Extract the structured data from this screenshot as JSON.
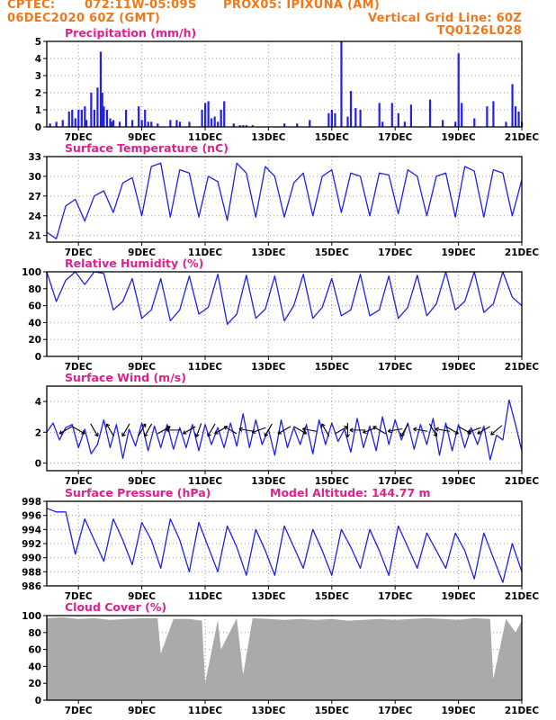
{
  "header": {
    "source": "CPTEC:",
    "coords": "072:11W-05:09S",
    "point": "PROX05: IPIXUNA (AM)",
    "run": "06DEC2020 60Z (GMT)",
    "vgrid": "Vertical Grid Line: 60Z",
    "model": "TQ0126L028"
  },
  "colors": {
    "header": "#f07818",
    "title": "#e0208c",
    "series": "#2020e8",
    "cloud": "#aaaaaa",
    "arrow": "#000000"
  },
  "chart_data": [
    {
      "type": "bar",
      "title": "Precipitation (mm/h)",
      "x_range": [
        0,
        15
      ],
      "ylim": [
        0,
        5
      ],
      "y_ticks": [
        0,
        1,
        2,
        3,
        4,
        5
      ],
      "x_ticks": [
        "7DEC",
        "9DEC",
        "11DEC",
        "13DEC",
        "15DEC",
        "17DEC",
        "19DEC",
        "21DEC"
      ],
      "grid": "dotted",
      "x": [
        0.1,
        0.3,
        0.5,
        0.7,
        0.8,
        0.9,
        1.0,
        1.1,
        1.2,
        1.25,
        1.4,
        1.5,
        1.6,
        1.7,
        1.75,
        1.8,
        1.9,
        2.0,
        2.05,
        2.1,
        2.3,
        2.5,
        2.7,
        2.9,
        3.0,
        3.1,
        3.2,
        3.3,
        3.5,
        3.9,
        4.1,
        4.2,
        4.5,
        4.9,
        5.0,
        5.1,
        5.2,
        5.3,
        5.4,
        5.5,
        5.6,
        5.9,
        6.1,
        6.2,
        6.3,
        6.5,
        7.5,
        7.9,
        8.3,
        8.9,
        9.0,
        9.1,
        9.3,
        9.5,
        9.6,
        9.75,
        9.9,
        10.5,
        10.6,
        10.9,
        11.1,
        11.3,
        11.5,
        12.1,
        12.5,
        12.9,
        13.0,
        13.1,
        13.5,
        13.9,
        14.1,
        14.5,
        14.7,
        14.8,
        14.9,
        15.0
      ],
      "values": [
        0.2,
        0.3,
        0.4,
        0.9,
        1.0,
        0.5,
        1.0,
        1.0,
        1.2,
        0.4,
        2.0,
        1.0,
        2.3,
        4.4,
        2.0,
        1.2,
        1.0,
        0.5,
        0.3,
        0.4,
        0.3,
        1.0,
        0.4,
        1.2,
        0.4,
        1.0,
        0.3,
        0.3,
        0.2,
        0.4,
        0.4,
        0.3,
        0.3,
        1.0,
        1.4,
        1.5,
        0.5,
        0.6,
        0.3,
        1.0,
        1.5,
        0.2,
        0.1,
        0.1,
        0.1,
        0.1,
        0.2,
        0.2,
        0.4,
        0.8,
        1.0,
        0.8,
        5.0,
        0.6,
        2.1,
        1.1,
        1.0,
        1.4,
        0.3,
        1.4,
        0.8,
        0.3,
        1.3,
        1.6,
        0.4,
        0.3,
        4.3,
        1.4,
        0.5,
        1.2,
        1.5,
        0.3,
        2.5,
        1.2,
        0.9,
        0.3
      ],
      "xlabel": "",
      "ylabel": ""
    },
    {
      "type": "line",
      "title": "Surface Temperature (nC)",
      "x_range": [
        0,
        15
      ],
      "ylim": [
        20,
        33
      ],
      "y_ticks": [
        21,
        24,
        27,
        30,
        33
      ],
      "x_ticks": [
        "7DEC",
        "9DEC",
        "11DEC",
        "13DEC",
        "15DEC",
        "17DEC",
        "19DEC",
        "21DEC"
      ],
      "grid": "dotted",
      "x": [
        0,
        0.3,
        0.6,
        0.9,
        1.2,
        1.5,
        1.8,
        2.1,
        2.4,
        2.7,
        3.0,
        3.3,
        3.6,
        3.9,
        4.2,
        4.5,
        4.8,
        5.1,
        5.4,
        5.7,
        6.0,
        6.3,
        6.6,
        6.9,
        7.2,
        7.5,
        7.8,
        8.1,
        8.4,
        8.7,
        9.0,
        9.3,
        9.6,
        9.9,
        10.2,
        10.5,
        10.8,
        11.1,
        11.4,
        11.7,
        12.0,
        12.3,
        12.6,
        12.9,
        13.2,
        13.5,
        13.8,
        14.1,
        14.4,
        14.7,
        15.0
      ],
      "values": [
        21.5,
        20.5,
        25.5,
        26.5,
        23.2,
        27.0,
        27.8,
        24.5,
        29.0,
        29.8,
        24.0,
        31.5,
        32.0,
        23.8,
        31.0,
        30.5,
        23.8,
        30.0,
        29.2,
        23.3,
        32.0,
        30.5,
        23.8,
        31.5,
        30.0,
        23.8,
        29.0,
        30.5,
        24.0,
        30.0,
        31.0,
        24.5,
        30.5,
        30.0,
        24.0,
        30.5,
        30.2,
        24.3,
        31.0,
        30.0,
        24.0,
        30.0,
        30.5,
        23.8,
        31.5,
        30.8,
        23.8,
        31.0,
        30.5,
        24.0,
        29.5
      ],
      "xlabel": "",
      "ylabel": ""
    },
    {
      "type": "line",
      "title": "Relative Humidity (%)",
      "x_range": [
        0,
        15
      ],
      "ylim": [
        0,
        100
      ],
      "y_ticks": [
        0,
        20,
        40,
        60,
        80,
        100
      ],
      "x_ticks": [
        "7DEC",
        "9DEC",
        "11DEC",
        "13DEC",
        "15DEC",
        "17DEC",
        "19DEC",
        "21DEC"
      ],
      "grid": "dotted",
      "x": [
        0,
        0.3,
        0.6,
        0.9,
        1.2,
        1.5,
        1.8,
        2.1,
        2.4,
        2.7,
        3.0,
        3.3,
        3.6,
        3.9,
        4.2,
        4.5,
        4.8,
        5.1,
        5.4,
        5.7,
        6.0,
        6.3,
        6.6,
        6.9,
        7.2,
        7.5,
        7.8,
        8.1,
        8.4,
        8.7,
        9.0,
        9.3,
        9.6,
        9.9,
        10.2,
        10.5,
        10.8,
        11.1,
        11.4,
        11.7,
        12.0,
        12.3,
        12.6,
        12.9,
        13.2,
        13.5,
        13.8,
        14.1,
        14.4,
        14.7,
        15.0
      ],
      "values": [
        100,
        65,
        90,
        100,
        85,
        100,
        98,
        55,
        65,
        92,
        45,
        55,
        92,
        42,
        55,
        95,
        50,
        58,
        97,
        38,
        50,
        96,
        45,
        56,
        95,
        42,
        60,
        97,
        45,
        58,
        92,
        48,
        55,
        97,
        48,
        55,
        95,
        45,
        58,
        96,
        48,
        62,
        100,
        55,
        65,
        100,
        52,
        62,
        100,
        70,
        60
      ],
      "xlabel": "",
      "ylabel": ""
    },
    {
      "type": "line",
      "title": "Surface Wind (m/s)",
      "x_range": [
        0,
        15
      ],
      "ylim": [
        -0.5,
        5
      ],
      "y_ticks": [
        0,
        2,
        4
      ],
      "x_ticks": [
        "7DEC",
        "9DEC",
        "11DEC",
        "13DEC",
        "15DEC",
        "17DEC",
        "19DEC",
        "21DEC"
      ],
      "grid": "dotted",
      "x": [
        0,
        0.2,
        0.4,
        0.6,
        0.8,
        1.0,
        1.2,
        1.4,
        1.6,
        1.8,
        2.0,
        2.2,
        2.4,
        2.6,
        2.8,
        3.0,
        3.2,
        3.4,
        3.6,
        3.8,
        4.0,
        4.2,
        4.4,
        4.6,
        4.8,
        5.0,
        5.2,
        5.4,
        5.6,
        5.8,
        6.0,
        6.2,
        6.4,
        6.6,
        6.8,
        7.0,
        7.2,
        7.4,
        7.6,
        7.8,
        8.0,
        8.2,
        8.4,
        8.6,
        8.8,
        9.0,
        9.2,
        9.4,
        9.6,
        9.8,
        10.0,
        10.2,
        10.4,
        10.6,
        10.8,
        11.0,
        11.2,
        11.4,
        11.6,
        11.8,
        12.0,
        12.2,
        12.4,
        12.6,
        12.8,
        13.0,
        13.2,
        13.4,
        13.6,
        13.8,
        14.0,
        14.2,
        14.4,
        14.6,
        14.8,
        15.0
      ],
      "values": [
        2.0,
        2.6,
        1.5,
        2.3,
        2.5,
        1.0,
        2.2,
        0.6,
        1.2,
        2.8,
        1.0,
        2.5,
        0.3,
        2.2,
        1.1,
        2.6,
        0.8,
        2.4,
        1.0,
        2.5,
        0.9,
        2.3,
        1.0,
        2.5,
        0.8,
        2.5,
        1.2,
        2.3,
        1.0,
        2.6,
        1.1,
        3.2,
        1.0,
        2.8,
        1.2,
        2.2,
        0.5,
        2.8,
        1.0,
        2.3,
        1.2,
        2.5,
        0.6,
        2.8,
        1.2,
        2.6,
        1.4,
        2.2,
        0.7,
        2.9,
        1.0,
        2.4,
        0.8,
        3.0,
        1.2,
        2.8,
        1.5,
        2.6,
        0.9,
        2.5,
        1.2,
        2.9,
        0.5,
        2.6,
        0.8,
        2.5,
        1.0,
        2.3,
        1.2,
        2.4,
        0.2,
        1.8,
        1.5,
        4.1,
        2.5,
        0.8
      ],
      "arrows_x": [
        0.6,
        1.0,
        1.5,
        2.0,
        2.5,
        3.0,
        3.2,
        3.7,
        4.0,
        4.5,
        4.8,
        5.2,
        5.5,
        5.8,
        6.3,
        6.7,
        7.0,
        7.5,
        8.0,
        8.3,
        8.8,
        9.3,
        9.5,
        9.8,
        10.2,
        10.5,
        11.0,
        11.3,
        11.8,
        12.2,
        12.5,
        12.8,
        13.2,
        13.5,
        13.8,
        14.2
      ],
      "arrows_deg": [
        210,
        330,
        300,
        120,
        240,
        60,
        240,
        30,
        180,
        210,
        250,
        240,
        210,
        150,
        170,
        200,
        240,
        210,
        330,
        170,
        120,
        30,
        270,
        180,
        200,
        150,
        190,
        240,
        170,
        300,
        170,
        330,
        330,
        200,
        210,
        220
      ],
      "xlabel": "",
      "ylabel": ""
    },
    {
      "type": "line",
      "title": "Surface Pressure (hPa)",
      "subtitle": "Model Altitude: 144.77 m",
      "x_range": [
        0,
        15
      ],
      "ylim": [
        986,
        998
      ],
      "y_ticks": [
        986,
        988,
        990,
        992,
        994,
        996,
        998
      ],
      "x_ticks": [
        "7DEC",
        "9DEC",
        "11DEC",
        "13DEC",
        "15DEC",
        "17DEC",
        "19DEC",
        "21DEC"
      ],
      "grid": "dotted",
      "x": [
        0,
        0.3,
        0.6,
        0.9,
        1.2,
        1.5,
        1.8,
        2.1,
        2.4,
        2.7,
        3.0,
        3.3,
        3.6,
        3.9,
        4.2,
        4.5,
        4.8,
        5.1,
        5.4,
        5.7,
        6.0,
        6.3,
        6.6,
        6.9,
        7.2,
        7.5,
        7.8,
        8.1,
        8.4,
        8.7,
        9.0,
        9.3,
        9.6,
        9.9,
        10.2,
        10.5,
        10.8,
        11.1,
        11.4,
        11.7,
        12.0,
        12.3,
        12.6,
        12.9,
        13.2,
        13.5,
        13.8,
        14.1,
        14.4,
        14.7,
        15.0
      ],
      "values": [
        997,
        996.5,
        996.5,
        990.5,
        995.5,
        992.5,
        989.5,
        995.5,
        992.5,
        989.0,
        995.0,
        992.5,
        988.5,
        995.5,
        992.5,
        988.0,
        995.0,
        991.5,
        988.0,
        994.5,
        991.5,
        987.5,
        994.0,
        991.0,
        987.5,
        994.5,
        991.5,
        988.5,
        994.0,
        991.0,
        987.5,
        994.0,
        991.5,
        988.5,
        994.0,
        991.0,
        987.5,
        994.5,
        991.5,
        988.5,
        993.5,
        991.0,
        988.5,
        993.5,
        991.0,
        987.0,
        993.5,
        990.0,
        986.5,
        992.0,
        988.0
      ],
      "xlabel": "",
      "ylabel": ""
    },
    {
      "type": "area",
      "title": "Cloud Cover (%)",
      "x_range": [
        0,
        15
      ],
      "ylim": [
        0,
        100
      ],
      "y_ticks": [
        0,
        20,
        40,
        60,
        80,
        100
      ],
      "x_ticks": [
        "7DEC",
        "9DEC",
        "11DEC",
        "13DEC",
        "15DEC",
        "17DEC",
        "19DEC",
        "21DEC"
      ],
      "grid": "dotted",
      "x": [
        0,
        0.5,
        1.0,
        1.5,
        2.0,
        2.5,
        3.0,
        3.5,
        3.6,
        4.0,
        4.5,
        4.9,
        5.0,
        5.4,
        5.5,
        6.0,
        6.2,
        6.5,
        7.0,
        7.5,
        8.0,
        8.5,
        9.0,
        9.5,
        10.0,
        10.5,
        11.0,
        11.5,
        12.0,
        12.5,
        13.0,
        13.5,
        14.0,
        14.1,
        14.5,
        14.8,
        15.0
      ],
      "values": [
        97,
        98,
        96,
        97,
        95,
        96,
        97,
        97,
        55,
        96,
        96,
        94,
        20,
        95,
        60,
        97,
        30,
        97,
        96,
        95,
        96,
        95,
        96,
        94,
        95,
        96,
        95,
        96,
        97,
        96,
        95,
        97,
        96,
        25,
        96,
        80,
        94
      ],
      "xlabel": "",
      "ylabel": ""
    }
  ]
}
